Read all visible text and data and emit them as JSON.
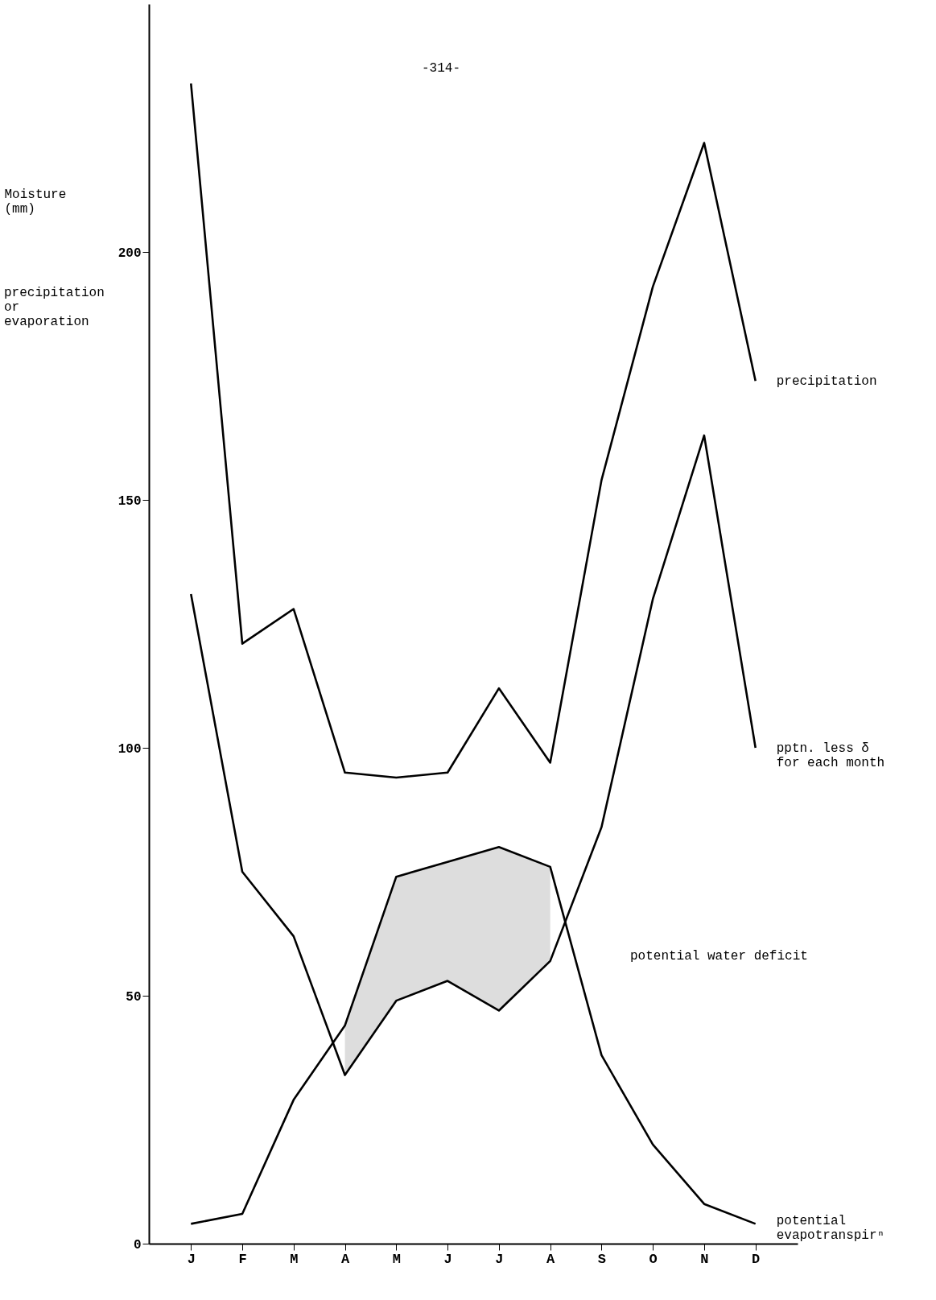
{
  "chart_data": {
    "type": "line",
    "ylabel": "Moisture\n(mm)",
    "categories": [
      "J",
      "F",
      "M",
      "A",
      "M",
      "J",
      "J",
      "A",
      "S",
      "O",
      "N",
      "D"
    ],
    "series": [
      {
        "name": "precipitation",
        "color": "#000000",
        "values": [
          234,
          121,
          128,
          95,
          94,
          95,
          112,
          97,
          154,
          193,
          222,
          174
        ]
      },
      {
        "name": "pptn. less δ\nfor each month",
        "color": "#000000",
        "values": [
          131,
          75,
          62,
          34,
          49,
          53,
          47,
          57,
          84,
          130,
          163,
          100
        ]
      },
      {
        "name": "potential\nevapotranspirⁿ",
        "color": "#000000",
        "values": [
          4,
          6,
          29,
          44,
          74,
          77,
          80,
          76,
          38,
          20,
          8,
          4
        ],
        "lower": [
          null,
          null,
          null,
          34,
          49,
          53,
          47,
          57,
          null,
          null,
          null,
          null
        ],
        "upper": [
          null,
          null,
          null,
          44,
          74,
          77,
          80,
          76,
          null,
          null,
          null,
          null
        ]
      }
    ],
    "ylim": [
      0,
      250
    ],
    "yticks": [
      0,
      50,
      100,
      150,
      200
    ],
    "annotations": [
      "-314-",
      "precipitation\nor\nevaporation",
      "potential water deficit"
    ]
  }
}
